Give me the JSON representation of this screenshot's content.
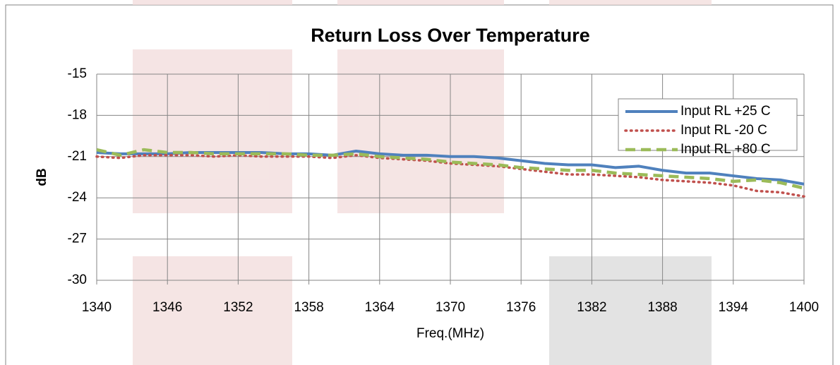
{
  "chart_data": {
    "type": "line",
    "title": "Return Loss Over Temperature",
    "x_label": "Freq.(MHz)",
    "y_label": "dB",
    "x": [
      1340,
      1342,
      1344,
      1346,
      1348,
      1350,
      1352,
      1354,
      1356,
      1358,
      1360,
      1362,
      1364,
      1366,
      1368,
      1370,
      1372,
      1374,
      1376,
      1378,
      1380,
      1382,
      1384,
      1386,
      1388,
      1390,
      1392,
      1394,
      1396,
      1398,
      1400
    ],
    "series": [
      {
        "name": "Input RL +25 C",
        "color": "#4f81bd",
        "dash": "solid",
        "values": [
          -20.7,
          -20.8,
          -20.8,
          -20.8,
          -20.7,
          -20.7,
          -20.7,
          -20.7,
          -20.8,
          -20.8,
          -20.9,
          -20.6,
          -20.8,
          -20.9,
          -20.9,
          -21.0,
          -21.0,
          -21.1,
          -21.3,
          -21.5,
          -21.6,
          -21.6,
          -21.8,
          -21.7,
          -22.0,
          -22.2,
          -22.2,
          -22.4,
          -22.6,
          -22.7,
          -23.0
        ]
      },
      {
        "name": "Input RL -20 C",
        "color": "#c0504d",
        "dash": "dotted",
        "values": [
          -21.0,
          -21.1,
          -20.9,
          -20.9,
          -20.9,
          -21.0,
          -20.9,
          -21.0,
          -21.0,
          -21.0,
          -21.1,
          -20.9,
          -21.1,
          -21.2,
          -21.3,
          -21.5,
          -21.6,
          -21.7,
          -21.9,
          -22.1,
          -22.3,
          -22.3,
          -22.4,
          -22.5,
          -22.7,
          -22.8,
          -22.9,
          -23.1,
          -23.5,
          -23.6,
          -23.9
        ]
      },
      {
        "name": "Input RL +80 C",
        "color": "#9bbb59",
        "dash": "dashed",
        "values": [
          -20.5,
          -20.9,
          -20.5,
          -20.7,
          -20.7,
          -20.8,
          -20.8,
          -20.8,
          -20.8,
          -20.9,
          -20.9,
          -20.8,
          -21.0,
          -21.1,
          -21.2,
          -21.4,
          -21.5,
          -21.6,
          -21.8,
          -21.9,
          -22.0,
          -22.0,
          -22.2,
          -22.3,
          -22.4,
          -22.5,
          -22.6,
          -22.8,
          -22.7,
          -22.9,
          -23.3
        ]
      }
    ],
    "xlim": [
      1340,
      1400
    ],
    "xticks": [
      1340,
      1346,
      1352,
      1358,
      1364,
      1370,
      1376,
      1382,
      1388,
      1394,
      1400
    ],
    "ylim": [
      -30,
      -15
    ],
    "yticks": [
      -15,
      -18,
      -21,
      -24,
      -27,
      -30
    ],
    "grid": true,
    "legend": "top-right"
  }
}
